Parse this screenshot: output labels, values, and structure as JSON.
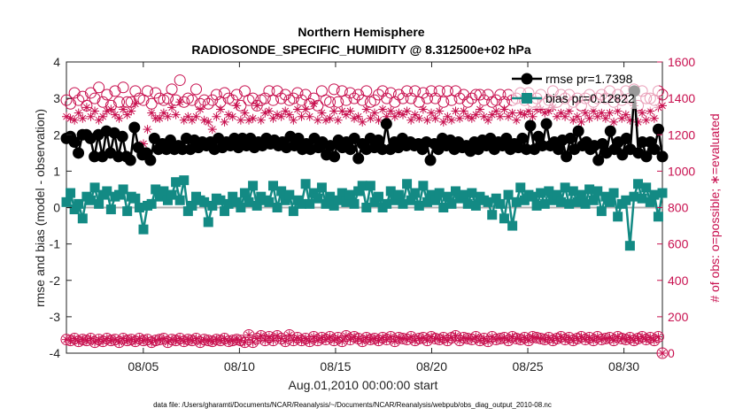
{
  "chart_data": {
    "type": "line",
    "title": "Northern Hemisphere",
    "subtitle": "RADIOSONDE_SPECIFIC_HUMIDITY @ 8.312500e+02 hPa",
    "xlabel": "Aug.01,2010 00:00:00 start",
    "ylabel_left": "rmse and bias (model - observation)",
    "ylabel_right": "# of obs: o=possible; ∗=evaluated",
    "xlim": [
      1,
      32
    ],
    "ylim_left": [
      -4,
      4
    ],
    "ylim_right": [
      0,
      1600
    ],
    "x_ticks": [
      5,
      10,
      15,
      20,
      25,
      30
    ],
    "x_tick_labels": [
      "08/05",
      "08/10",
      "08/15",
      "08/20",
      "08/25",
      "08/30"
    ],
    "y_ticks_left": [
      -4,
      -3,
      -2,
      -1,
      0,
      1,
      2,
      3,
      4
    ],
    "y_ticks_right": [
      0,
      200,
      400,
      600,
      800,
      1000,
      1200,
      1400,
      1600
    ],
    "footer": "data file: /Users/gharamti/Documents/NCAR/Reanalysis/~/Documents/NCAR/Reanalysis/webpub/obs_diag_output_2010-08.nc",
    "colors": {
      "rmse": "#000000",
      "bias": "#138a84",
      "obs": "#c8104f",
      "zero_line": "#b0b0b0"
    },
    "legend_position": "top-right",
    "series": [
      {
        "name": "rmse",
        "legend_label": "rmse pr=1.7398",
        "axis": "left",
        "values": [
          1.9,
          1.95,
          1.8,
          1.5,
          2.0,
          2.0,
          1.9,
          1.4,
          2.0,
          1.4,
          2.1,
          1.5,
          2.05,
          1.4,
          1.95,
          1.4,
          1.3,
          2.2,
          1.65,
          1.45,
          1.5,
          1.3,
          1.9,
          1.6,
          1.75,
          1.6,
          1.85,
          1.6,
          1.7,
          1.6,
          1.9,
          1.6,
          1.85,
          1.65,
          1.8,
          1.7,
          1.8,
          1.6,
          1.9,
          1.65,
          1.8,
          1.7,
          1.9,
          1.65,
          1.9,
          1.7,
          1.9,
          1.65,
          1.8,
          1.7,
          1.9,
          1.75,
          1.85,
          1.7,
          1.8,
          1.65,
          1.95,
          1.7,
          1.9,
          1.6,
          1.75,
          1.6,
          1.9,
          1.65,
          1.8,
          1.45,
          1.7,
          1.4,
          1.85,
          1.65,
          1.8,
          1.6,
          1.9,
          1.35,
          1.75,
          1.6,
          1.9,
          1.65,
          1.85,
          1.6,
          2.3,
          1.6,
          1.8,
          1.65,
          1.9,
          1.7,
          1.8,
          1.7,
          1.75,
          1.6,
          1.8,
          1.3,
          1.75,
          1.6,
          1.9,
          1.7,
          1.85,
          1.6,
          1.8,
          1.65,
          1.7,
          1.55,
          1.8,
          1.6,
          1.85,
          1.7,
          1.9,
          1.6,
          1.8,
          1.7,
          1.9,
          1.6,
          1.75,
          1.65,
          1.9,
          1.6,
          2.25,
          1.6,
          1.95,
          1.7,
          2.3,
          1.7,
          1.8,
          1.6,
          1.85,
          1.4,
          1.9,
          1.6,
          2.1,
          1.7,
          1.8,
          1.6,
          1.7,
          1.3,
          1.75,
          1.5,
          2.1,
          1.6,
          1.8,
          1.45,
          1.9,
          1.6,
          3.2,
          1.5,
          1.8,
          1.4,
          1.8,
          1.6,
          2.15,
          1.4
        ]
      },
      {
        "name": "bias",
        "legend_label": "bias pr=0.12822",
        "axis": "left",
        "values": [
          0.15,
          0.4,
          -0.05,
          0.1,
          -0.3,
          0.3,
          0.2,
          0.55,
          0.1,
          0.35,
          0.45,
          -0.05,
          0.3,
          0.35,
          0.5,
          -0.1,
          0.3,
          0.25,
          0.0,
          -0.6,
          0.05,
          0.1,
          0.5,
          0.3,
          0.45,
          0.2,
          0.35,
          0.7,
          0.2,
          0.75,
          -0.1,
          0.05,
          0.3,
          0.2,
          0.15,
          -0.4,
          0.05,
          0.25,
          0.2,
          -0.1,
          0.1,
          0.3,
          0.15,
          0.0,
          0.4,
          0.15,
          0.6,
          0.05,
          0.3,
          0.2,
          0.15,
          0.6,
          0.0,
          0.45,
          0.2,
          0.35,
          -0.1,
          0.2,
          0.1,
          0.65,
          0.1,
          0.4,
          0.25,
          0.55,
          0.1,
          0.3,
          0.05,
          0.2,
          0.4,
          0.15,
          0.35,
          0.1,
          0.45,
          0.6,
          0.0,
          0.6,
          0.15,
          0.3,
          0.0,
          0.1,
          0.45,
          0.2,
          0.35,
          0.1,
          0.65,
          0.2,
          0.4,
          0.05,
          0.6,
          0.15,
          0.35,
          0.2,
          0.4,
          0.0,
          0.3,
          0.1,
          0.45,
          0.25,
          0.35,
          0.1,
          0.4,
          0.05,
          0.3,
          0.2,
          0.15,
          -0.2,
          0.25,
          0.1,
          -0.3,
          0.35,
          -0.5,
          0.15,
          0.55,
          0.2,
          0.35,
          0.3,
          0.05,
          0.4,
          0.1,
          0.45,
          0.2,
          0.35,
          0.15,
          0.55,
          0.1,
          0.45,
          0.15,
          0.35,
          0.1,
          0.5,
          0.2,
          0.45,
          -0.1,
          0.3,
          0.15,
          0.4,
          -0.25,
          0.1,
          0.2,
          -1.05,
          0.3,
          0.65,
          0.25,
          0.55,
          0.15,
          0.35,
          -0.25,
          0.4
        ]
      },
      {
        "name": "obs possible",
        "axis": "right",
        "marker": "circle",
        "values": [
          1390,
          1370,
          1430,
          1390,
          1410,
          1360,
          1430,
          1400,
          1460,
          1380,
          1420,
          1360,
          1440,
          1380,
          1460,
          1380,
          1380,
          1440,
          1400,
          1390,
          1440,
          1370,
          1430,
          1400,
          1390,
          1400,
          1450,
          1390,
          1500,
          1380,
          1400,
          1390,
          1450,
          1370,
          1390,
          1370,
          1390,
          1420,
          1380,
          1430,
          1400,
          1390,
          1420,
          1360,
          1440,
          1390,
          1400,
          1360,
          1390,
          1400,
          1440,
          1390,
          1440,
          1400,
          1420,
          1390,
          1400,
          1430,
          1390,
          1420,
          1370,
          1400,
          1360,
          1440,
          1390,
          1380,
          1450,
          1380,
          1440,
          1390,
          1430,
          1400,
          1420,
          1390,
          1440,
          1380,
          1390,
          1420,
          1440,
          1400,
          1430,
          1380,
          1420,
          1400,
          1440,
          1400,
          1440,
          1380,
          1430,
          1400,
          1440,
          1400,
          1440,
          1380,
          1440,
          1390,
          1440,
          1400,
          1420,
          1380,
          1400,
          1420,
          1420,
          1390,
          1420,
          1380,
          1390,
          1420,
          1380,
          1420,
          1390,
          1400,
          1430,
          1390,
          1430,
          1380,
          1400,
          1420,
          1370,
          1390,
          1440,
          1380,
          1420,
          1400,
          1420,
          1380,
          1400,
          1360,
          1400,
          1420,
          1380,
          1400,
          1420,
          1400,
          1440,
          1380,
          1420,
          1390,
          1440,
          1400,
          1450,
          1360,
          1440,
          1400,
          1400,
          1390,
          1440,
          1420
        ]
      },
      {
        "name": "obs evaluated",
        "axis": "right",
        "marker": "asterisk",
        "values": [
          1300,
          1290,
          1280,
          1320,
          1290,
          1350,
          1300,
          1330,
          1280,
          1300,
          1330,
          1340,
          1310,
          1290,
          1340,
          1310,
          1330,
          1370,
          1140,
          1150,
          1230,
          1320,
          1290,
          1290,
          1320,
          1300,
          1350,
          1310,
          1380,
          1280,
          1300,
          1280,
          1300,
          1340,
          1280,
          1270,
          1230,
          1300,
          1340,
          1270,
          1310,
          1300,
          1360,
          1280,
          1320,
          1280,
          1290,
          1360,
          1280,
          1320,
          1330,
          1290,
          1310,
          1300,
          1330,
          1310,
          1280,
          1340,
          1300,
          1340,
          1300,
          1370,
          1280,
          1320,
          1280,
          1290,
          1330,
          1280,
          1330,
          1310,
          1330,
          1290,
          1300,
          1270,
          1340,
          1290,
          1320,
          1280,
          1340,
          1300,
          1330,
          1300,
          1320,
          1310,
          1330,
          1280,
          1310,
          1290,
          1340,
          1280,
          1320,
          1290,
          1330,
          1270,
          1300,
          1280,
          1330,
          1290,
          1330,
          1300,
          1290,
          1310,
          1340,
          1300,
          1280,
          1310,
          1330,
          1300,
          1340,
          1300,
          1320,
          1280,
          1320,
          1310,
          1330,
          1300,
          1340,
          1340,
          1320,
          1330,
          1350,
          1300,
          1320,
          1300,
          1330,
          1280,
          1300,
          1270,
          1320,
          1290,
          1330,
          1300,
          1320,
          1290,
          1320,
          1270,
          1330,
          1290,
          1310,
          1280,
          1360,
          1270,
          1320,
          1280,
          1330,
          1290,
          1350,
          1360
        ]
      },
      {
        "name": "obs possible (low)",
        "axis": "right",
        "marker": "circle",
        "values": [
          75,
          70,
          80,
          65,
          75,
          70,
          80,
          60,
          75,
          65,
          80,
          70,
          75,
          60,
          80,
          70,
          75,
          65,
          80,
          70,
          75,
          60,
          70,
          75,
          80,
          60,
          75,
          70,
          80,
          65,
          75,
          70,
          80,
          60,
          75,
          70,
          65,
          75,
          70,
          80,
          65,
          70,
          75,
          70,
          60,
          100,
          60,
          80,
          95,
          70,
          90,
          70,
          95,
          80,
          65,
          100,
          70,
          85,
          70,
          80,
          65,
          90,
          70,
          85,
          75,
          90,
          70,
          85,
          65,
          95,
          75,
          90,
          80,
          65,
          85,
          75,
          80,
          70,
          85,
          75,
          90,
          65,
          85,
          80,
          75,
          90,
          70,
          80,
          85,
          70,
          90,
          80,
          75,
          85,
          70,
          85,
          95,
          70,
          85,
          80,
          75,
          90,
          70,
          80,
          65,
          90,
          75,
          80,
          85,
          70,
          90,
          80,
          75,
          85,
          70,
          90,
          85,
          80,
          75,
          85,
          70,
          80,
          90,
          75,
          85,
          70,
          80,
          90,
          75,
          85,
          70,
          90,
          75,
          80,
          85,
          70,
          90,
          80,
          75,
          85,
          70,
          80,
          90,
          75,
          85,
          70,
          90,
          0
        ]
      },
      {
        "name": "obs evaluated (low)",
        "axis": "right",
        "marker": "asterisk",
        "values": [
          75,
          70,
          80,
          65,
          75,
          70,
          80,
          60,
          75,
          65,
          80,
          70,
          75,
          60,
          80,
          70,
          75,
          65,
          80,
          70,
          75,
          60,
          70,
          75,
          80,
          60,
          75,
          70,
          80,
          65,
          75,
          70,
          80,
          60,
          75,
          70,
          65,
          75,
          70,
          80,
          65,
          70,
          75,
          70,
          60,
          100,
          60,
          80,
          95,
          70,
          90,
          70,
          95,
          80,
          65,
          100,
          70,
          85,
          70,
          80,
          65,
          90,
          70,
          85,
          75,
          90,
          70,
          85,
          65,
          95,
          75,
          90,
          80,
          65,
          85,
          75,
          80,
          70,
          85,
          75,
          90,
          65,
          85,
          80,
          75,
          90,
          70,
          80,
          85,
          70,
          90,
          80,
          75,
          85,
          70,
          85,
          95,
          70,
          85,
          80,
          75,
          90,
          70,
          80,
          65,
          90,
          75,
          80,
          85,
          70,
          90,
          80,
          75,
          85,
          70,
          90,
          85,
          80,
          75,
          85,
          70,
          80,
          90,
          75,
          85,
          70,
          80,
          90,
          75,
          85,
          70,
          90,
          75,
          80,
          85,
          70,
          90,
          80,
          75,
          85,
          70,
          80,
          90,
          75,
          85,
          70,
          90,
          0
        ]
      }
    ]
  }
}
